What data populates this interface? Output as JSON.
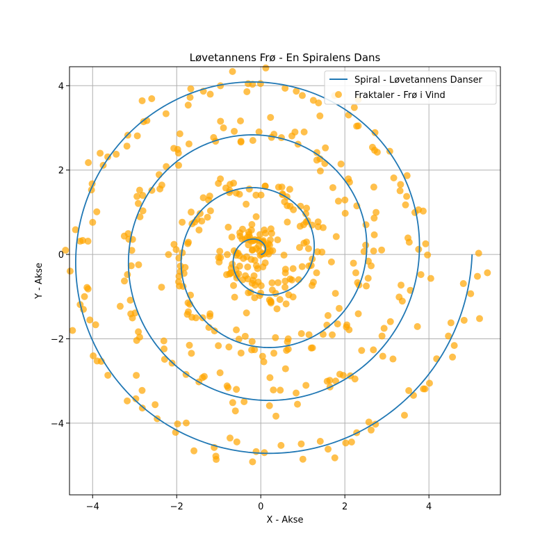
{
  "chart_data": {
    "type": "line+scatter",
    "title": "Løvetannens Frø - En Spiralens Dans",
    "xlabel": "X - Akse",
    "ylabel": "Y - Akse",
    "xlim": [
      -4.55,
      5.7
    ],
    "ylim": [
      -5.7,
      4.45
    ],
    "xticks": [
      -4,
      -2,
      0,
      2,
      4
    ],
    "yticks": [
      -4,
      -2,
      0,
      2,
      4
    ],
    "xtick_labels": [
      "−4",
      "−2",
      "0",
      "2",
      "4"
    ],
    "ytick_labels": [
      "−4",
      "−2",
      "0",
      "2",
      "4"
    ],
    "grid": true,
    "legend_position": "top-right",
    "series": [
      {
        "name": "Spiral - Løvetannens Danser",
        "kind": "line",
        "color": "#1f77b4",
        "formula": "r = 0.2 * t, x = r*cos(t), y = r*sin(t), t in [0, 8*pi]",
        "t_range": [
          0,
          25.1327
        ],
        "r_coefficient": 0.2
      },
      {
        "name": "Fraktaler - Frø i Vind",
        "kind": "scatter",
        "color": "#ffa500",
        "alpha": 0.7,
        "description": "noisy samples around the spiral",
        "count": 500,
        "noise_std": 0.2
      }
    ]
  }
}
